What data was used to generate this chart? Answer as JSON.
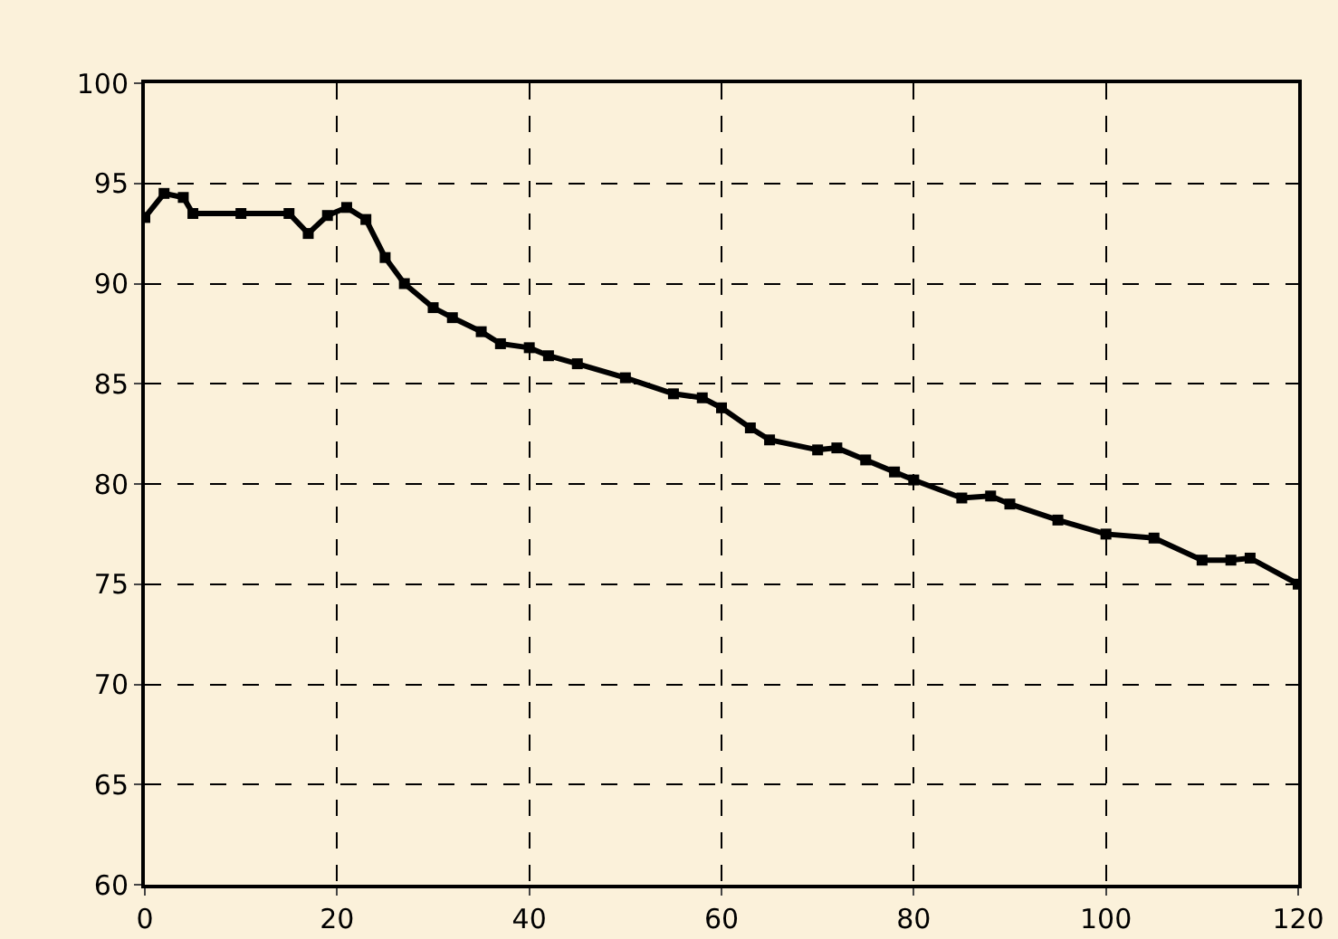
{
  "chart_data": {
    "type": "line",
    "x": [
      0,
      2,
      4,
      5,
      10,
      15,
      17,
      19,
      21,
      23,
      25,
      27,
      30,
      32,
      35,
      37,
      40,
      42,
      45,
      50,
      55,
      58,
      60,
      63,
      65,
      70,
      72,
      75,
      78,
      80,
      85,
      88,
      90,
      95,
      100,
      105,
      110,
      113,
      115,
      120
    ],
    "series": [
      {
        "color": "#000000",
        "values": [
          93.3,
          94.5,
          94.3,
          93.5,
          93.5,
          93.5,
          92.5,
          93.4,
          93.8,
          93.2,
          91.3,
          90,
          88.8,
          88.3,
          87.6,
          87,
          86.8,
          86.4,
          86,
          85.3,
          84.5,
          84.3,
          83.8,
          82.8,
          82.2,
          81.7,
          81.8,
          81.2,
          80.6,
          80.2,
          79.3,
          79.4,
          79,
          78.2,
          77.5,
          77.3,
          76.2,
          76.2,
          76.3,
          75
        ]
      }
    ],
    "xlim": [
      0,
      120
    ],
    "xticks": [
      0,
      20,
      40,
      60,
      80,
      100,
      120
    ],
    "ylim": [
      60,
      100
    ],
    "yticks": [
      60,
      65,
      70,
      75,
      80,
      85,
      90,
      95,
      100
    ],
    "grid": true,
    "marker": "square",
    "line_style": "solid"
  }
}
